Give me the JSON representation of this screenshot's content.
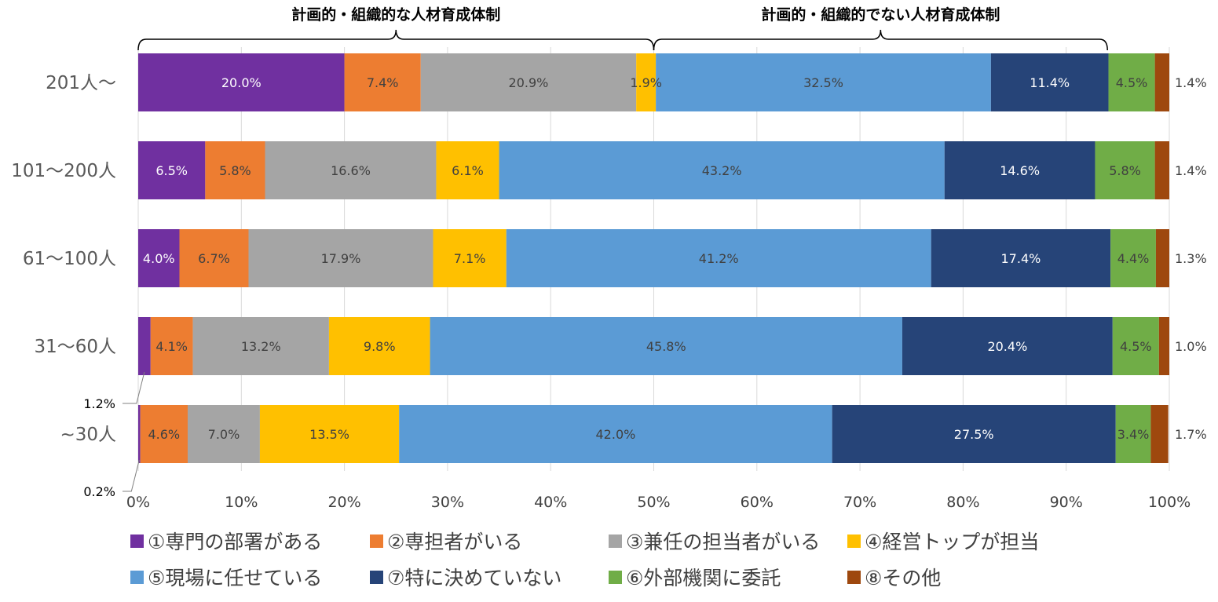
{
  "chart_data": {
    "type": "bar",
    "orientation": "horizontal",
    "stacked": true,
    "percent_stacked": true,
    "categories": [
      "201人～",
      "101～200人",
      "61～100人",
      "31～60人",
      "~30人"
    ],
    "series": [
      {
        "name": "①専門の部署がある",
        "color": "#7030a0",
        "label_color": "#ffffff",
        "values": [
          20.0,
          6.5,
          4.0,
          1.2,
          0.2
        ],
        "labels": [
          "20.0%",
          "6.5%",
          "4.0%",
          "1.2%",
          "0.2%"
        ]
      },
      {
        "name": "②専担者がいる",
        "color": "#ed7d31",
        "label_color": "#404040",
        "values": [
          7.4,
          5.8,
          6.7,
          4.1,
          4.6
        ],
        "labels": [
          "7.4%",
          "5.8%",
          "6.7%",
          "4.1%",
          "4.6%"
        ]
      },
      {
        "name": "③兼任の担当者がいる",
        "color": "#a5a5a5",
        "label_color": "#404040",
        "values": [
          20.9,
          16.6,
          17.9,
          13.2,
          7.0
        ],
        "labels": [
          "20.9%",
          "16.6%",
          "17.9%",
          "13.2%",
          "7.0%"
        ]
      },
      {
        "name": "④経営トップが担当",
        "color": "#ffc000",
        "label_color": "#404040",
        "values": [
          1.9,
          6.1,
          7.1,
          9.8,
          13.5
        ],
        "labels": [
          "1.9%",
          "6.1%",
          "7.1%",
          "9.8%",
          "13.5%"
        ]
      },
      {
        "name": "⑤現場に任せている",
        "color": "#5b9bd5",
        "label_color": "#404040",
        "values": [
          32.5,
          43.2,
          41.2,
          45.8,
          42.0
        ],
        "labels": [
          "32.5%",
          "43.2%",
          "41.2%",
          "45.8%",
          "42.0%"
        ]
      },
      {
        "name": "⑦特に決めていない",
        "color": "#264478",
        "label_color": "#ffffff",
        "values": [
          11.4,
          14.6,
          17.4,
          20.4,
          27.5
        ],
        "labels": [
          "11.4%",
          "14.6%",
          "17.4%",
          "20.4%",
          "27.5%"
        ]
      },
      {
        "name": "⑥外部機関に委託",
        "color": "#70ad47",
        "label_color": "#404040",
        "values": [
          4.5,
          5.8,
          4.4,
          4.5,
          3.4
        ],
        "labels": [
          "4.5%",
          "5.8%",
          "4.4%",
          "4.5%",
          "3.4%"
        ]
      },
      {
        "name": "⑧その他",
        "color": "#9e480e",
        "label_color": "#404040",
        "values": [
          1.4,
          1.4,
          1.3,
          1.0,
          1.7
        ],
        "labels": [
          "1.4%",
          "1.4%",
          "1.3%",
          "1.0%",
          "1.7%"
        ]
      }
    ],
    "xlim": [
      0,
      100
    ],
    "x_ticks": [
      0,
      10,
      20,
      30,
      40,
      50,
      60,
      70,
      80,
      90,
      100
    ],
    "x_tick_labels": [
      "0%",
      "10%",
      "20%",
      "30%",
      "40%",
      "50%",
      "60%",
      "70%",
      "80%",
      "90%",
      "100%"
    ],
    "gridlines": "vertical",
    "legend_position": "bottom",
    "group_annotations": [
      {
        "label": "計画的・組織的な人材育成体制",
        "from": 0,
        "to": 50
      },
      {
        "label": "計画的・組織的でない人材育成体制",
        "from": 50,
        "to": 94
      }
    ]
  }
}
